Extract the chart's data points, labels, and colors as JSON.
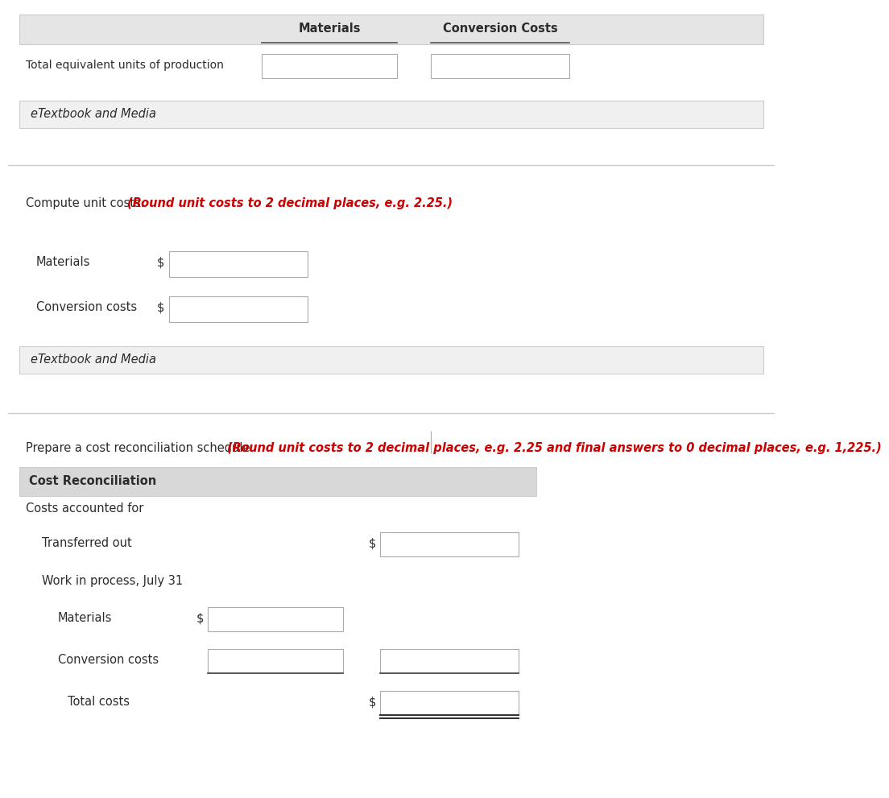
{
  "bg_color": "#ffffff",
  "header_bg": "#e5e5e5",
  "header_border": "#cccccc",
  "etextbook_bg": "#f0f0f0",
  "etextbook_border": "#cccccc",
  "cr_header_bg": "#d8d8d8",
  "input_bg": "#ffffff",
  "input_border": "#aaaaaa",
  "text_color": "#2c2c2c",
  "red_color": "#cc0000",
  "divider_color": "#cccccc",
  "line_color": "#333333",
  "col1_label": "Materials",
  "col2_label": "Conversion Costs",
  "row_label": "Total equivalent units of production",
  "etextbook_label": "eTextbook and Media",
  "s2_instr_normal": "Compute unit costs.",
  "s2_instr_red": "(Round unit costs to 2 decimal places, e.g. 2.25.)",
  "s2_mat_label": "Materials",
  "s2_conv_label": "Conversion costs",
  "s3_instr_normal": "Prepare a cost reconciliation schedule.",
  "s3_instr_red": "(Round unit costs to 2 decimal places, e.g. 2.25 and final answers to 0 decimal places, e.g. 1,225.)",
  "cr_header": "Cost Reconciliation",
  "costs_acc": "Costs accounted for",
  "transferred": "Transferred out",
  "wip": "Work in process, July 31",
  "s3_mat": "Materials",
  "s3_conv": "Conversion costs",
  "s3_total": "Total costs"
}
